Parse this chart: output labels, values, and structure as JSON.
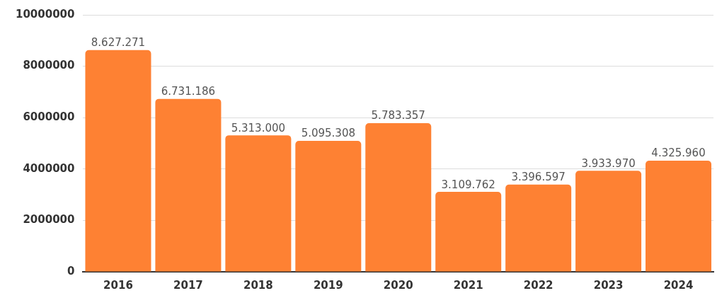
{
  "chart_data": {
    "type": "bar",
    "categories": [
      "2016",
      "2017",
      "2018",
      "2019",
      "2020",
      "2021",
      "2022",
      "2023",
      "2024"
    ],
    "values": [
      8627271,
      6731186,
      5313000,
      5095308,
      5783357,
      3109762,
      3396597,
      3933970,
      4325960
    ],
    "value_labels": [
      "8.627.271",
      "6.731.186",
      "5.313.000",
      "5.095.308",
      "5.783.357",
      "3.109.762",
      "3.396.597",
      "3.933.970",
      "4.325.960"
    ],
    "color": "#fe8133",
    "ylim": [
      0,
      10000000
    ],
    "yticks": [
      0,
      2000000,
      4000000,
      6000000,
      8000000,
      10000000
    ],
    "grid": "y"
  }
}
